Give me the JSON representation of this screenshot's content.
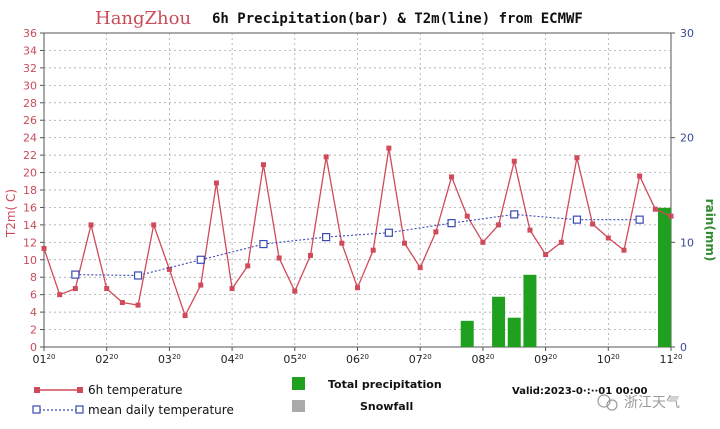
{
  "chart_data": {
    "type": "line",
    "title": {
      "city": "HangZhou",
      "rest": "6h Precipitation(bar) & T2m(line) from ECMWF"
    },
    "left_axis": {
      "label": "T2m( C)",
      "range": [
        0,
        36
      ],
      "ticks": [
        0,
        2,
        4,
        6,
        8,
        10,
        12,
        14,
        16,
        18,
        20,
        22,
        24,
        26,
        28,
        30,
        32,
        34,
        36
      ],
      "color": "#c94c5a"
    },
    "right_axis": {
      "label": "rain(mm)",
      "range": [
        0,
        30
      ],
      "ticks": [
        0,
        10,
        20,
        30
      ],
      "color": "#3a4a9a"
    },
    "x_axis": {
      "range": [
        0,
        40
      ],
      "ticks": [
        {
          "pos": 0,
          "day": "01",
          "hour": "20"
        },
        {
          "pos": 4,
          "day": "02",
          "hour": "20"
        },
        {
          "pos": 8,
          "day": "03",
          "hour": "20"
        },
        {
          "pos": 12,
          "day": "04",
          "hour": "20"
        },
        {
          "pos": 16,
          "day": "05",
          "hour": "20"
        },
        {
          "pos": 20,
          "day": "06",
          "hour": "20"
        },
        {
          "pos": 24,
          "day": "07",
          "hour": "20"
        },
        {
          "pos": 28,
          "day": "08",
          "hour": "20"
        },
        {
          "pos": 32,
          "day": "09",
          "hour": "20"
        },
        {
          "pos": 36,
          "day": "10",
          "hour": "20"
        },
        {
          "pos": 40,
          "day": "11",
          "hour": "20"
        }
      ]
    },
    "grid": true,
    "series": [
      {
        "name": "6h temperature",
        "color": "#d04a5a",
        "x": [
          0,
          1,
          2,
          3,
          4,
          5,
          6,
          7,
          8,
          9,
          10,
          11,
          12,
          13,
          14,
          15,
          16,
          17,
          18,
          19,
          20,
          21,
          22,
          23,
          24,
          25,
          26,
          27,
          28,
          29,
          30,
          31,
          32,
          33,
          34,
          35,
          36,
          37,
          38,
          39,
          40
        ],
        "values": [
          11.3,
          6.0,
          6.7,
          14.0,
          6.7,
          5.1,
          4.8,
          14.0,
          8.9,
          3.6,
          7.1,
          18.8,
          6.7,
          9.3,
          20.9,
          10.2,
          6.4,
          10.5,
          21.8,
          11.9,
          6.8,
          11.1,
          22.8,
          11.9,
          9.1,
          13.2,
          19.5,
          15.0,
          12.0,
          14.0,
          21.3,
          13.4,
          10.6,
          12.0,
          21.7,
          14.1,
          12.5,
          11.1,
          19.6,
          15.8,
          15.0
        ]
      },
      {
        "name": "mean daily temperature",
        "color": "#3a4ab0",
        "x": [
          2,
          6,
          10,
          14,
          18,
          22,
          26,
          30,
          34,
          38
        ],
        "values": [
          8.3,
          8.2,
          10.0,
          11.8,
          12.6,
          13.1,
          14.2,
          15.2,
          14.6,
          14.6
        ]
      }
    ],
    "precipitation_bars": {
      "name": "Total precipitation",
      "color": "#1fa01f",
      "x": [
        27,
        29,
        30,
        31,
        40
      ],
      "values": [
        2.5,
        4.8,
        2.8,
        6.9,
        13.3
      ]
    },
    "snowfall": {
      "name": "Snowfall",
      "color": "#aaaaaa"
    },
    "legend": {
      "temp_label": "6h temperature",
      "mean_label": "mean daily temperature",
      "precip_label": "Total precipitation",
      "snow_label": "Snowfall",
      "valid_label": "Valid:2023-0·:··01 00:00"
    },
    "watermark": "浙江天气"
  }
}
